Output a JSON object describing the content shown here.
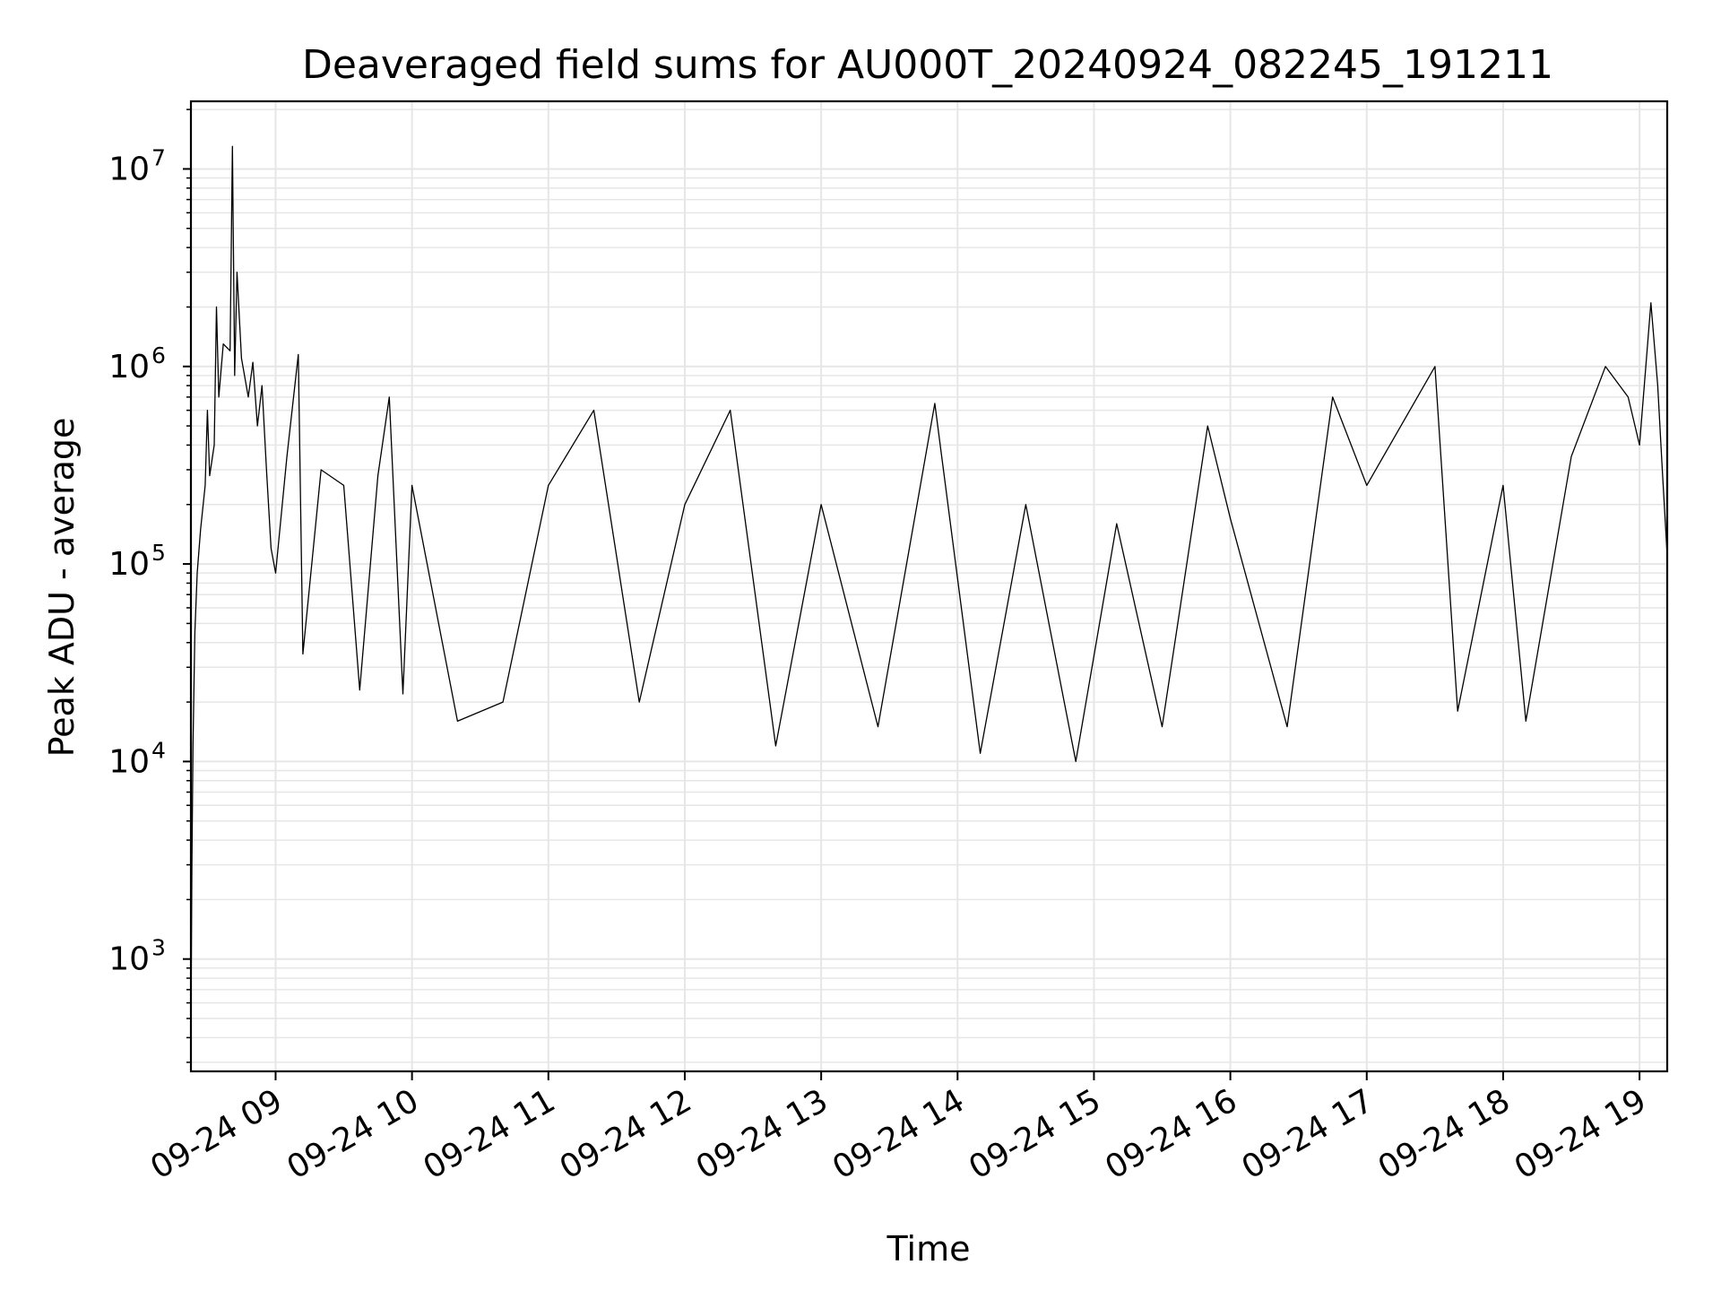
{
  "chart_data": {
    "type": "line",
    "title": "Deaveraged field sums for AU000T_20240924_082245_191211",
    "xlabel": "Time",
    "ylabel": "Peak ADU - average",
    "yscale": "log",
    "grid": true,
    "line_color": "#000000",
    "grid_color": "#e6e6e6",
    "xlim": [
      "2024-09-24 08:22:45",
      "2024-09-24 19:12:11"
    ],
    "ylim": [
      270,
      22000000
    ],
    "x_ticks": [
      {
        "time": "2024-09-24 09:00",
        "label": "09-24 09"
      },
      {
        "time": "2024-09-24 10:00",
        "label": "09-24 10"
      },
      {
        "time": "2024-09-24 11:00",
        "label": "09-24 11"
      },
      {
        "time": "2024-09-24 12:00",
        "label": "09-24 12"
      },
      {
        "time": "2024-09-24 13:00",
        "label": "09-24 13"
      },
      {
        "time": "2024-09-24 14:00",
        "label": "09-24 14"
      },
      {
        "time": "2024-09-24 15:00",
        "label": "09-24 15"
      },
      {
        "time": "2024-09-24 16:00",
        "label": "09-24 16"
      },
      {
        "time": "2024-09-24 17:00",
        "label": "09-24 17"
      },
      {
        "time": "2024-09-24 18:00",
        "label": "09-24 18"
      },
      {
        "time": "2024-09-24 19:00",
        "label": "09-24 19"
      }
    ],
    "y_ticks": [
      {
        "value": 1000,
        "base": "10",
        "exp": "3"
      },
      {
        "value": 10000,
        "base": "10",
        "exp": "4"
      },
      {
        "value": 100000,
        "base": "10",
        "exp": "5"
      },
      {
        "value": 1000000,
        "base": "10",
        "exp": "6"
      },
      {
        "value": 10000000,
        "base": "10",
        "exp": "7"
      }
    ],
    "series": [
      {
        "points": [
          [
            "2024-09-24 08:22:45",
            450
          ],
          [
            "2024-09-24 08:23:10",
            3000
          ],
          [
            "2024-09-24 08:23:40",
            12000
          ],
          [
            "2024-09-24 08:24:30",
            45000
          ],
          [
            "2024-09-24 08:25:30",
            90000
          ],
          [
            "2024-09-24 08:27:00",
            150000
          ],
          [
            "2024-09-24 08:29:00",
            250000
          ],
          [
            "2024-09-24 08:30:00",
            600000
          ],
          [
            "2024-09-24 08:31:00",
            280000
          ],
          [
            "2024-09-24 08:33:00",
            400000
          ],
          [
            "2024-09-24 08:34:00",
            2000000
          ],
          [
            "2024-09-24 08:35:00",
            700000
          ],
          [
            "2024-09-24 08:37:00",
            1300000
          ],
          [
            "2024-09-24 08:40:00",
            1200000
          ],
          [
            "2024-09-24 08:41:00",
            13000000
          ],
          [
            "2024-09-24 08:42:00",
            900000
          ],
          [
            "2024-09-24 08:43:00",
            3000000
          ],
          [
            "2024-09-24 08:45:00",
            1100000
          ],
          [
            "2024-09-24 08:48:00",
            700000
          ],
          [
            "2024-09-24 08:50:00",
            1050000
          ],
          [
            "2024-09-24 08:52:00",
            500000
          ],
          [
            "2024-09-24 08:54:00",
            800000
          ],
          [
            "2024-09-24 08:56:00",
            300000
          ],
          [
            "2024-09-24 08:58:00",
            120000
          ],
          [
            "2024-09-24 09:00:00",
            90000
          ],
          [
            "2024-09-24 09:05:00",
            350000
          ],
          [
            "2024-09-24 09:10:00",
            1150000
          ],
          [
            "2024-09-24 09:12:00",
            35000
          ],
          [
            "2024-09-24 09:20:00",
            300000
          ],
          [
            "2024-09-24 09:30:00",
            250000
          ],
          [
            "2024-09-24 09:37:00",
            23000
          ],
          [
            "2024-09-24 09:45:00",
            280000
          ],
          [
            "2024-09-24 09:50:00",
            700000
          ],
          [
            "2024-09-24 09:56:00",
            22000
          ],
          [
            "2024-09-24 10:00:00",
            250000
          ],
          [
            "2024-09-24 10:20:00",
            16000
          ],
          [
            "2024-09-24 10:40:00",
            20000
          ],
          [
            "2024-09-24 11:00:00",
            250000
          ],
          [
            "2024-09-24 11:20:00",
            600000
          ],
          [
            "2024-09-24 11:40:00",
            20000
          ],
          [
            "2024-09-24 12:00:00",
            200000
          ],
          [
            "2024-09-24 12:20:00",
            600000
          ],
          [
            "2024-09-24 12:40:00",
            12000
          ],
          [
            "2024-09-24 13:00:00",
            200000
          ],
          [
            "2024-09-24 13:25:00",
            15000
          ],
          [
            "2024-09-24 13:50:00",
            650000
          ],
          [
            "2024-09-24 14:10:00",
            11000
          ],
          [
            "2024-09-24 14:30:00",
            200000
          ],
          [
            "2024-09-24 14:52:00",
            10000
          ],
          [
            "2024-09-24 15:10:00",
            160000
          ],
          [
            "2024-09-24 15:30:00",
            15000
          ],
          [
            "2024-09-24 15:50:00",
            500000
          ],
          [
            "2024-09-24 16:00:00",
            170000
          ],
          [
            "2024-09-24 16:25:00",
            15000
          ],
          [
            "2024-09-24 16:45:00",
            700000
          ],
          [
            "2024-09-24 17:00:00",
            250000
          ],
          [
            "2024-09-24 17:30:00",
            1000000
          ],
          [
            "2024-09-24 17:40:00",
            18000
          ],
          [
            "2024-09-24 18:00:00",
            250000
          ],
          [
            "2024-09-24 18:10:00",
            16000
          ],
          [
            "2024-09-24 18:30:00",
            350000
          ],
          [
            "2024-09-24 18:45:00",
            1000000
          ],
          [
            "2024-09-24 18:55:00",
            700000
          ],
          [
            "2024-09-24 19:00:00",
            400000
          ],
          [
            "2024-09-24 19:05:00",
            2100000
          ],
          [
            "2024-09-24 19:08:00",
            800000
          ],
          [
            "2024-09-24 19:10:00",
            300000
          ],
          [
            "2024-09-24 19:12:11",
            110000
          ]
        ]
      }
    ]
  }
}
